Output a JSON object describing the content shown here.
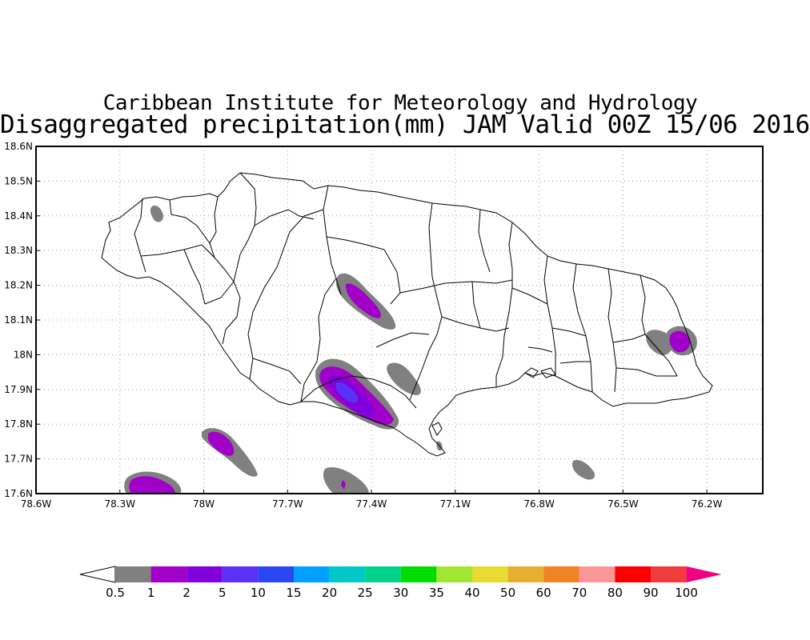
{
  "title": {
    "line1": "Caribbean Institute for Meteorology and Hydrology",
    "line2": "Disaggregated precipitation(mm) JAM Valid 00Z 15/06 2016"
  },
  "map": {
    "region": "Jamaica",
    "lat_labels": [
      "18.6N",
      "18.5N",
      "18.4N",
      "18.3N",
      "18.2N",
      "18.1N",
      "18N",
      "17.9N",
      "17.8N",
      "17.7N",
      "17.6N"
    ],
    "lon_labels": [
      "78.6W",
      "78.3W",
      "78W",
      "77.7W",
      "77.4W",
      "77.1W",
      "76.8W",
      "76.5W",
      "76.2W"
    ],
    "lat_range": [
      17.6,
      18.6
    ],
    "lon_range": [
      -78.6,
      -76.0
    ],
    "grid": true,
    "grid_style": "dotted"
  },
  "colorbar": {
    "labels": [
      "0.5",
      "1",
      "2",
      "5",
      "10",
      "15",
      "20",
      "25",
      "30",
      "35",
      "40",
      "50",
      "60",
      "70",
      "80",
      "90",
      "100"
    ],
    "colors": [
      "#ffffff",
      "#808080",
      "#a000c8",
      "#8200dc",
      "#5a32f5",
      "#2a46f0",
      "#00a0ff",
      "#00c8c8",
      "#00d28c",
      "#00dc00",
      "#a0e632",
      "#e6dc32",
      "#e6af2d",
      "#f08228",
      "#fa9696",
      "#fa0000",
      "#f03c3c",
      "#f00082"
    ]
  }
}
